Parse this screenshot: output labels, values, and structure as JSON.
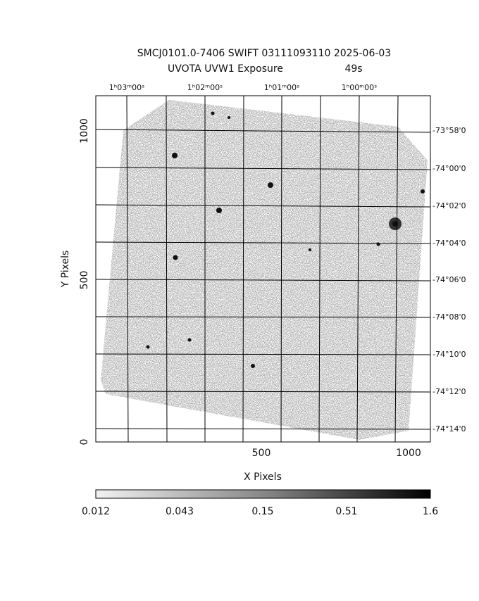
{
  "header": {
    "title": "SMCJ0101.0-7406 SWIFT 03111093110 2025-06-03",
    "subtitle": "UVOTA UVW1 Exposure",
    "exposure": "49s"
  },
  "axes": {
    "x_label": "X Pixels",
    "y_label": "Y Pixels",
    "x_ticks": [
      "500",
      "1000"
    ],
    "y_ticks": [
      "0",
      "500",
      "1000"
    ],
    "ra_ticks": [
      "1ʰ03ᵐ00ˢ",
      "1ʰ02ᵐ00ˢ",
      "1ʰ01ᵐ00ˢ",
      "1ʰ00ᵐ00ˢ"
    ],
    "dec_ticks": [
      "-73°58'0",
      "-74°00'0",
      "-74°02'0",
      "-74°04'0",
      "-74°06'0",
      "-74°08'0",
      "-74°10'0",
      "-74°12'0",
      "-74°14'0"
    ]
  },
  "colorbar": {
    "labels": [
      "0.012",
      "0.043",
      "0.15",
      "0.51",
      "1.6"
    ]
  }
}
